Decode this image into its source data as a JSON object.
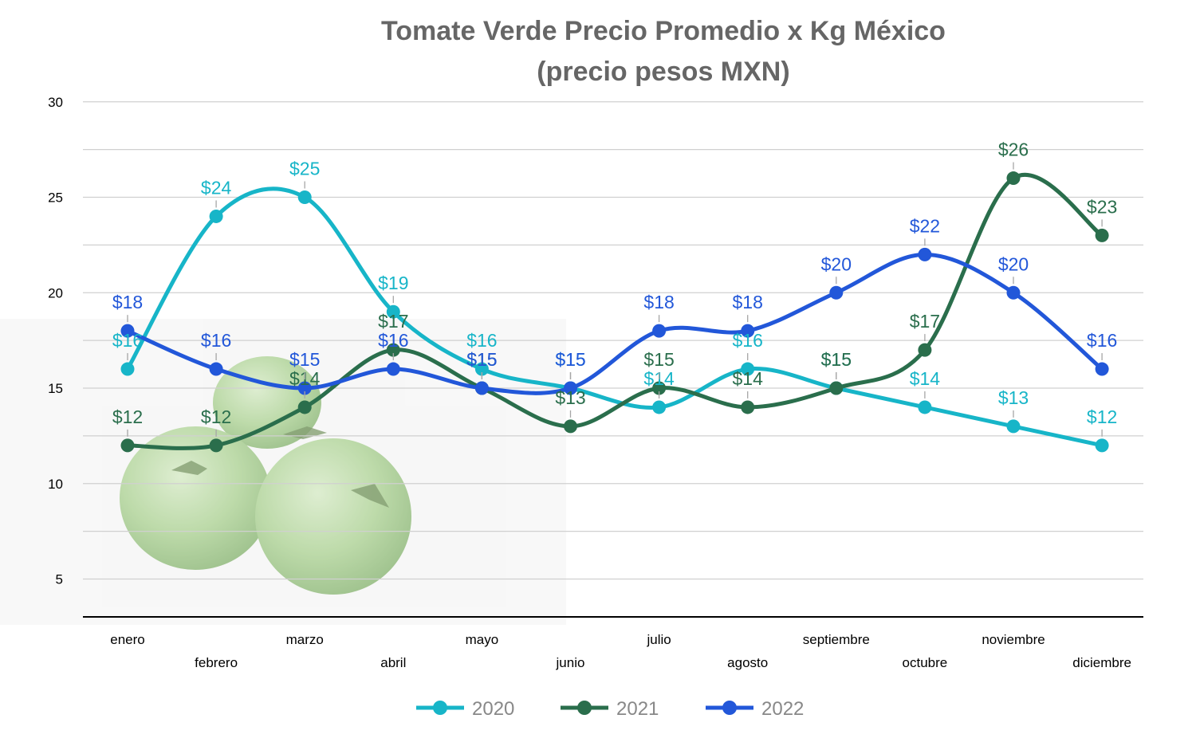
{
  "chart_data": {
    "type": "line",
    "title_line1": "Tomate Verde Precio Promedio x Kg México",
    "title_line2": "(precio pesos MXN)",
    "xlabel": "",
    "ylabel": "",
    "ylim": [
      3,
      30
    ],
    "yticks": [
      5,
      10,
      15,
      20,
      25,
      30
    ],
    "grid": true,
    "smooth": true,
    "legend_position": "bottom",
    "categories": [
      "enero",
      "febrero",
      "marzo",
      "abril",
      "mayo",
      "junio",
      "julio",
      "agosto",
      "septiembre",
      "octubre",
      "noviembre",
      "diciembre"
    ],
    "series": [
      {
        "name": "2020",
        "color": "#17B5C8",
        "values": [
          16,
          24,
          25,
          19,
          16,
          15,
          14,
          16,
          15,
          14,
          13,
          12
        ],
        "labels": [
          "$16",
          "$24",
          "$25",
          "$19",
          "$16",
          "$15",
          "$14",
          "$16",
          "$15",
          "$14",
          "$13",
          "$12"
        ]
      },
      {
        "name": "2021",
        "color": "#2A6E4C",
        "values": [
          12,
          12,
          14,
          17,
          15,
          13,
          15,
          14,
          15,
          17,
          26,
          23
        ],
        "labels": [
          "$12",
          "$12",
          "$14",
          "$17",
          "$15",
          "$13",
          "$15",
          "$14",
          "$15",
          "$17",
          "$26",
          "$23"
        ]
      },
      {
        "name": "2022",
        "color": "#2257D9",
        "values": [
          18,
          16,
          15,
          16,
          15,
          15,
          18,
          18,
          20,
          22,
          20,
          16
        ],
        "labels": [
          "$18",
          "$16",
          "$15",
          "$16",
          "$15",
          "$15",
          "$18",
          "$18",
          "$20",
          "$22",
          "$20",
          "$16"
        ]
      }
    ]
  },
  "background_image": "green-tomatoes-photo"
}
